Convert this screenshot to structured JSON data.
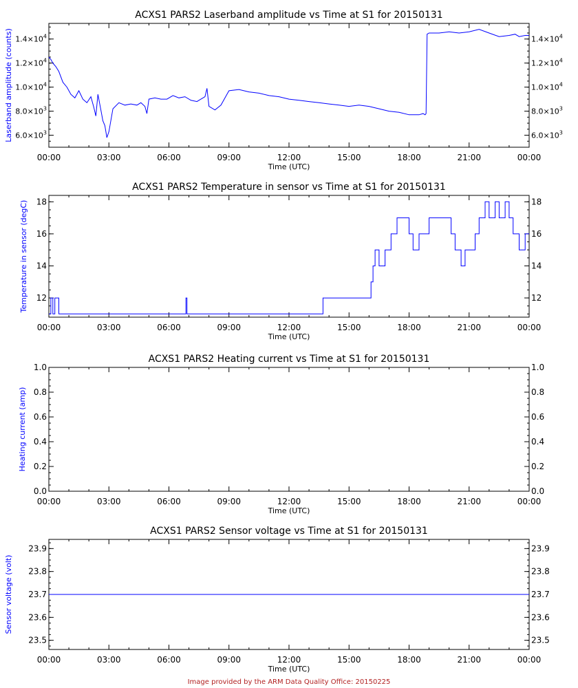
{
  "footer": "Image provided by the ARM Data Quality Office: 20150225",
  "colors": {
    "axes": "#000000",
    "series": "#0000ff",
    "ylabel": "#0000ff",
    "footer": "#b22222"
  },
  "chart_data": [
    {
      "type": "line",
      "title": "ACXS1 PARS2 Laserband amplitude vs Time at S1 for 20150131",
      "xlabel": "Time (UTC)",
      "ylabel": "Laserband amplitude (counts)",
      "xlim": [
        0,
        24
      ],
      "ylim": [
        5000,
        15300
      ],
      "xticks": [
        0,
        3,
        6,
        9,
        12,
        15,
        18,
        21,
        24
      ],
      "xtick_labels": [
        "00:00",
        "03:00",
        "06:00",
        "09:00",
        "12:00",
        "15:00",
        "18:00",
        "21:00",
        "00:00"
      ],
      "yticks": [
        6000,
        8000,
        10000,
        12000,
        14000
      ],
      "ytick_labels": [
        [
          "6.0×10",
          "3"
        ],
        [
          "8.0×10",
          "3"
        ],
        [
          "1.0×10",
          "4"
        ],
        [
          "1.2×10",
          "4"
        ],
        [
          "1.4×10",
          "4"
        ]
      ],
      "series": [
        {
          "x": [
            0,
            0.1,
            0.2,
            0.35,
            0.5,
            0.7,
            0.9,
            1.1,
            1.3,
            1.5,
            1.7,
            1.9,
            2.1,
            2.25,
            2.35,
            2.45,
            2.6,
            2.7,
            2.8,
            2.9,
            3.0,
            3.2,
            3.5,
            3.8,
            4.1,
            4.4,
            4.6,
            4.8,
            4.9,
            5.0,
            5.3,
            5.6,
            5.9,
            6.2,
            6.5,
            6.8,
            7.1,
            7.4,
            7.6,
            7.8,
            7.9,
            8.0,
            8.3,
            8.6,
            8.9,
            9.0,
            9.5,
            10.0,
            10.5,
            11.0,
            11.5,
            12.0,
            12.5,
            13.0,
            13.5,
            14.0,
            14.5,
            15.0,
            15.5,
            16.0,
            16.5,
            17.0,
            17.5,
            18.0,
            18.5,
            18.7,
            18.8,
            18.85,
            18.9,
            19.0,
            19.5,
            20.0,
            20.5,
            21.0,
            21.5,
            22.0,
            22.5,
            23.0,
            23.3,
            23.5,
            23.8,
            24.0
          ],
          "y": [
            12500,
            12300,
            12000,
            11700,
            11300,
            10400,
            10000,
            9400,
            9100,
            9700,
            9000,
            8700,
            9200,
            8300,
            7600,
            9400,
            8100,
            7200,
            6800,
            5800,
            6300,
            8200,
            8700,
            8500,
            8600,
            8500,
            8700,
            8400,
            7800,
            9000,
            9100,
            9000,
            9000,
            9300,
            9100,
            9200,
            8900,
            8800,
            9000,
            9200,
            9900,
            8400,
            8100,
            8500,
            9400,
            9700,
            9800,
            9600,
            9500,
            9300,
            9200,
            9000,
            8900,
            8800,
            8700,
            8600,
            8500,
            8400,
            8500,
            8400,
            8200,
            8000,
            7900,
            7700,
            7700,
            7800,
            7700,
            7800,
            14400,
            14500,
            14500,
            14600,
            14500,
            14600,
            14800,
            14500,
            14200,
            14300,
            14400,
            14200,
            14300,
            14300
          ]
        }
      ]
    },
    {
      "type": "line",
      "title": "ACXS1 PARS2 Temperature in sensor vs Time at S1 for 20150131",
      "xlabel": "Time (UTC)",
      "ylabel": "Temperature in sensor (degC)",
      "xlim": [
        0,
        24
      ],
      "ylim": [
        10.8,
        18.4
      ],
      "xticks": [
        0,
        3,
        6,
        9,
        12,
        15,
        18,
        21,
        24
      ],
      "xtick_labels": [
        "00:00",
        "03:00",
        "06:00",
        "09:00",
        "12:00",
        "15:00",
        "18:00",
        "21:00",
        "00:00"
      ],
      "yticks": [
        12,
        14,
        16,
        18
      ],
      "ytick_labels": [
        "12",
        "14",
        "16",
        "18"
      ],
      "series": [
        {
          "x": [
            0,
            0.1,
            0.1,
            0.2,
            0.2,
            0.3,
            0.3,
            0.5,
            0.5,
            6.85,
            6.85,
            6.9,
            6.9,
            13.7,
            13.7,
            16.1,
            16.1,
            16.2,
            16.2,
            16.3,
            16.3,
            16.5,
            16.5,
            16.8,
            16.8,
            17.1,
            17.1,
            17.4,
            17.4,
            18.0,
            18.0,
            18.2,
            18.2,
            18.5,
            18.5,
            19.0,
            19.0,
            20.1,
            20.1,
            20.3,
            20.3,
            20.6,
            20.6,
            20.8,
            20.8,
            21.3,
            21.3,
            21.5,
            21.5,
            21.8,
            21.8,
            22.0,
            22.0,
            22.3,
            22.3,
            22.5,
            22.5,
            22.8,
            22.8,
            23.0,
            23.0,
            23.2,
            23.2,
            23.5,
            23.5,
            23.8,
            23.8,
            24.0
          ],
          "y": [
            11,
            11,
            12,
            12,
            11,
            11,
            12,
            12,
            11,
            11,
            12,
            12,
            11,
            11,
            12,
            12,
            13,
            13,
            14,
            14,
            15,
            15,
            14,
            14,
            15,
            15,
            16,
            16,
            17,
            17,
            16,
            16,
            15,
            15,
            16,
            16,
            17,
            17,
            16,
            16,
            15,
            15,
            14,
            14,
            15,
            15,
            16,
            16,
            17,
            17,
            18,
            18,
            17,
            17,
            18,
            18,
            17,
            17,
            18,
            18,
            17,
            17,
            16,
            16,
            15,
            15,
            16,
            16
          ]
        }
      ]
    },
    {
      "type": "line",
      "title": "ACXS1 PARS2 Heating current vs Time at S1 for 20150131",
      "xlabel": "Time (UTC)",
      "ylabel": "Heating current (amp)",
      "xlim": [
        0,
        24
      ],
      "ylim": [
        0,
        1
      ],
      "xticks": [
        0,
        3,
        6,
        9,
        12,
        15,
        18,
        21,
        24
      ],
      "xtick_labels": [
        "00:00",
        "03:00",
        "06:00",
        "09:00",
        "12:00",
        "15:00",
        "18:00",
        "21:00",
        "00:00"
      ],
      "yticks": [
        0,
        0.2,
        0.4,
        0.6,
        0.8,
        1.0
      ],
      "ytick_labels": [
        "0.0",
        "0.2",
        "0.4",
        "0.6",
        "0.8",
        "1.0"
      ],
      "series": []
    },
    {
      "type": "line",
      "title": "ACXS1 PARS2 Sensor voltage vs Time at S1 for 20150131",
      "xlabel": "Time (UTC)",
      "ylabel": "Sensor voltage (volt)",
      "xlim": [
        0,
        24
      ],
      "ylim": [
        23.46,
        23.94
      ],
      "xticks": [
        0,
        3,
        6,
        9,
        12,
        15,
        18,
        21,
        24
      ],
      "xtick_labels": [
        "00:00",
        "03:00",
        "06:00",
        "09:00",
        "12:00",
        "15:00",
        "18:00",
        "21:00",
        "00:00"
      ],
      "yticks": [
        23.5,
        23.6,
        23.7,
        23.8,
        23.9
      ],
      "ytick_labels": [
        "23.5",
        "23.6",
        "23.7",
        "23.8",
        "23.9"
      ],
      "series": [
        {
          "x": [
            0,
            24
          ],
          "y": [
            23.7,
            23.7
          ]
        }
      ]
    }
  ]
}
